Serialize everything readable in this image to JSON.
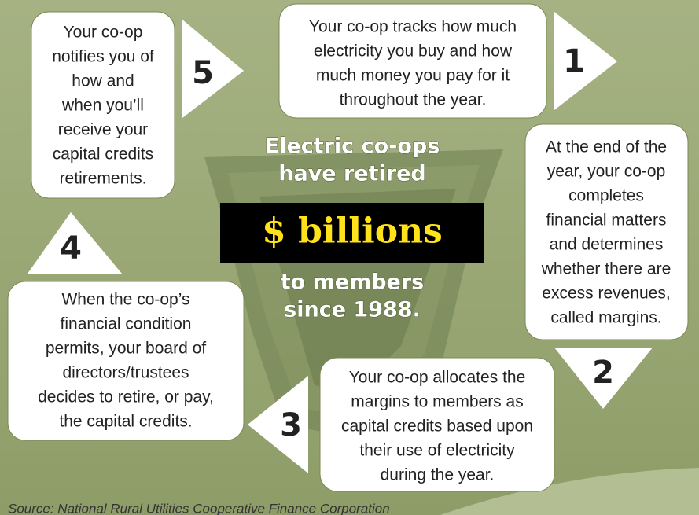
{
  "steps": [
    {
      "number": "1",
      "lines": [
        "Your co-op tracks how much",
        "electricity you buy and how",
        "much money you pay for it",
        "throughout the year."
      ]
    },
    {
      "number": "2",
      "lines": [
        "At the end of the",
        "year, your co-op",
        "completes",
        "financial matters",
        "and determines",
        "whether there are",
        "excess revenues,",
        "called margins."
      ]
    },
    {
      "number": "3",
      "lines": [
        "Your co-op allocates the",
        "margins to members as",
        "capital credits based upon",
        "their use of electricity",
        "during the year."
      ]
    },
    {
      "number": "4",
      "lines": [
        "When the co-op’s",
        "financial condition",
        "permits, your board of",
        "directors/trustees",
        "decides to retire, or pay,",
        "the capital credits."
      ]
    },
    {
      "number": "5",
      "lines": [
        "Your co-op",
        "notifies you of",
        "how and",
        "when you’ll",
        "receive your",
        "capital credits",
        "retirements."
      ]
    }
  ],
  "center": {
    "top_lines": [
      "Electric co-ops",
      "have retired"
    ],
    "highlight": "$ billions",
    "bottom_lines": [
      "to members",
      "since 1988."
    ]
  },
  "source": "Source: National Rural Utilities Cooperative Finance Corporation"
}
